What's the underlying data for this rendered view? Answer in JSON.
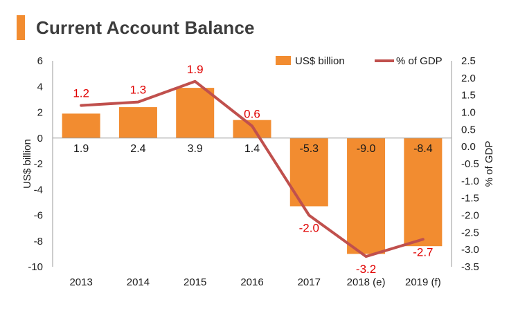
{
  "header": {
    "title": "Current Account Balance"
  },
  "colors": {
    "accent": "#F28C30",
    "bar": "#F28C30",
    "line": "#C0504D",
    "line_label": "#E00000",
    "text": "#1a1a1a"
  },
  "chart_data": {
    "type": "bar",
    "title": "Current Account Balance",
    "categories": [
      "2013",
      "2014",
      "2015",
      "2016",
      "2017",
      "2018 (e)",
      "2019 (f)"
    ],
    "series": [
      {
        "name": "US$ billion",
        "type": "bar",
        "axis": "left",
        "values": [
          1.9,
          2.4,
          3.9,
          1.4,
          -5.3,
          -9.0,
          -8.4
        ],
        "labels": [
          "1.9",
          "2.4",
          "3.9",
          "1.4",
          "-5.3",
          "-9.0",
          "-8.4"
        ]
      },
      {
        "name": "% of GDP",
        "type": "line",
        "axis": "right",
        "values": [
          1.2,
          1.3,
          1.9,
          0.6,
          -2.0,
          -3.2,
          -2.7
        ],
        "labels": [
          "1.2",
          "1.3",
          "1.9",
          "0.6",
          "-2.0",
          "-3.2",
          "-2.7"
        ]
      }
    ],
    "ylabel": "US$ billion",
    "ylim": [
      -10,
      6
    ],
    "yticks": [
      "6",
      "4",
      "2",
      "0",
      "-2",
      "-4",
      "-6",
      "-8",
      "-10"
    ],
    "y2label": "% of GDP",
    "y2lim": [
      -3.5,
      2.5
    ],
    "y2ticks": [
      "2.5",
      "2.0",
      "1.5",
      "1.0",
      "0.5",
      "0.0",
      "-0.5",
      "-1.0",
      "-1.5",
      "-2.0",
      "-2.5",
      "-3.0",
      "-3.5"
    ],
    "legend": "top-right",
    "grid": false
  }
}
